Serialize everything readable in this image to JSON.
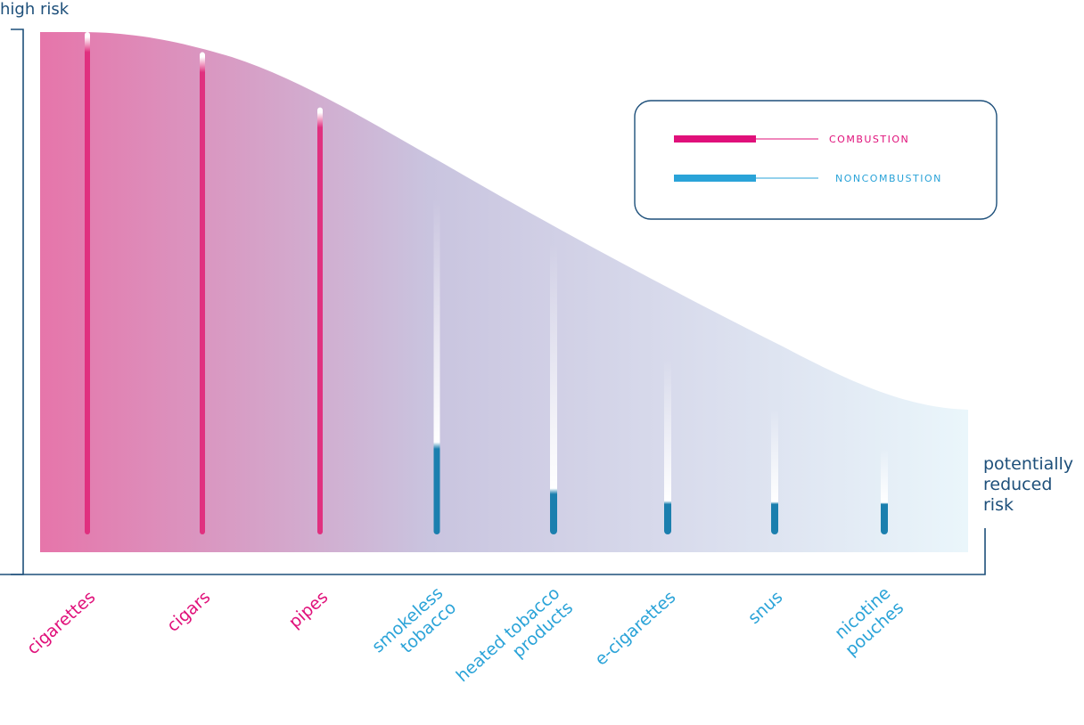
{
  "axis": {
    "top_label": "high risk",
    "bottom_label_lines": [
      "potentially",
      "reduced",
      "risk"
    ]
  },
  "legend": {
    "combustion": "COMBUSTION",
    "noncombustion": "NONCOMBUSTION"
  },
  "colors": {
    "combustion": "#e0307f",
    "noncombustion": "#1b7fae",
    "legend_combustion": "#e0107a",
    "legend_noncombustion": "#2aa3d8",
    "axis": "#1d4f7a",
    "area_start": "#e675aa",
    "area_mid": "#c9c4df",
    "area_end": "#eaf6fb"
  },
  "chart_data": {
    "type": "bar",
    "categories": [
      "cigarettes",
      "cigars",
      "pipes",
      "smokeless tobacco",
      "heated tobacco products",
      "e-cigarettes",
      "snus",
      "nicotine pouches"
    ],
    "category_lines": [
      [
        "cigarettes"
      ],
      [
        "cigars"
      ],
      [
        "pipes"
      ],
      [
        "smokeless",
        "tobacco"
      ],
      [
        "heated tobacco",
        "products"
      ],
      [
        "e-cigarettes"
      ],
      [
        "snus"
      ],
      [
        "nicotine",
        "pouches"
      ]
    ],
    "groups": [
      "combustion",
      "combustion",
      "combustion",
      "noncombustion",
      "noncombustion",
      "noncombustion",
      "noncombustion",
      "noncombustion"
    ],
    "values": [
      96,
      92,
      81,
      17,
      8,
      6,
      6,
      6
    ],
    "fade_top": [
      100,
      96,
      85,
      67,
      58,
      35,
      25,
      17
    ],
    "ylim": [
      0,
      100
    ],
    "y_axis_ticks": "none",
    "legend_position": "top-right"
  }
}
